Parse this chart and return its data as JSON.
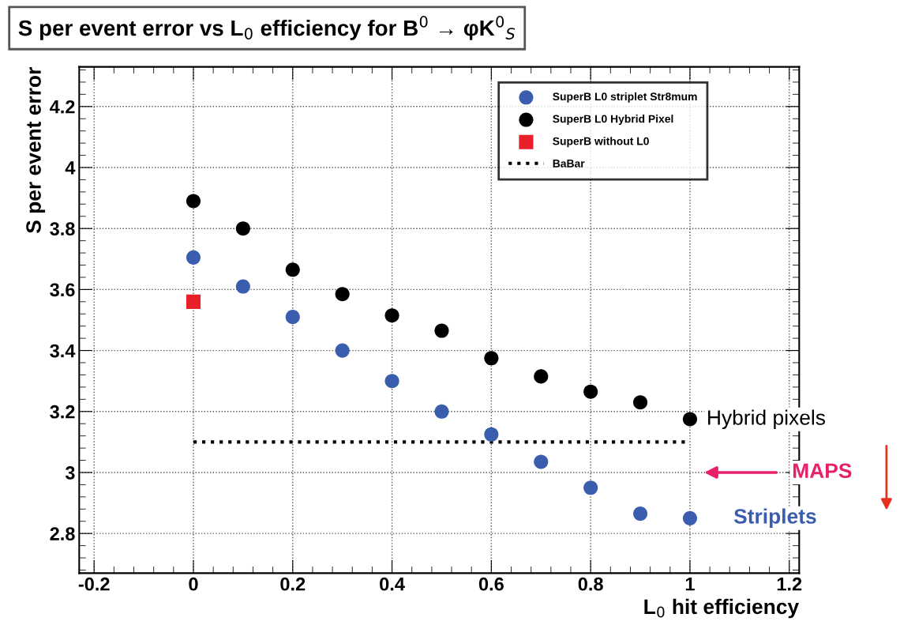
{
  "chart_data": {
    "type": "scatter",
    "title": "S per event error vs L$_{0}$ efficiency for B$^{0}$ → φK$^{0}$$_{S}$",
    "xlabel": "L$_{0}$ hit efficiency",
    "ylabel": "S per event error",
    "xlim": [
      -0.23,
      1.22
    ],
    "ylim": [
      2.67,
      4.33
    ],
    "xticks": [
      {
        "value": -0.2,
        "label": "-0.2"
      },
      0,
      0.2,
      0.4,
      0.6,
      0.8,
      1,
      1.2
    ],
    "yticks": [
      2.8,
      3,
      3.2,
      3.4,
      3.6,
      3.8,
      4,
      4.2
    ],
    "grid": true,
    "legend": "top right",
    "series": [
      {
        "name": "SuperB L0 striplet Str8mum",
        "color": "#3a5dae",
        "marker": "circle",
        "x": [
          0,
          0.1,
          0.2,
          0.3,
          0.4,
          0.5,
          0.6,
          0.7,
          0.8,
          0.9,
          1
        ],
        "values": [
          3.705,
          3.61,
          3.51,
          3.4,
          3.3,
          3.2,
          3.125,
          3.035,
          2.95,
          2.865,
          2.85
        ]
      },
      {
        "name": "SuperB L0 Hybrid Pixel",
        "color": "#000000",
        "marker": "circle",
        "x": [
          0,
          0.1,
          0.2,
          0.3,
          0.4,
          0.5,
          0.6,
          0.7,
          0.8,
          0.9,
          1
        ],
        "values": [
          3.89,
          3.8,
          3.665,
          3.585,
          3.515,
          3.465,
          3.375,
          3.315,
          3.265,
          3.23,
          3.175
        ]
      },
      {
        "name": "SuperB without L0",
        "color": "#e8202a",
        "marker": "square",
        "x": [
          0
        ],
        "values": [
          3.56
        ]
      },
      {
        "name": "BaBar",
        "type": "line",
        "color": "#000000",
        "line_style": "dotted",
        "marker": "none",
        "x": [
          0,
          1
        ],
        "values": [
          3.1,
          3.1
        ]
      }
    ],
    "annotations": [
      "Hybrid pixels",
      "MAPS",
      "Striplets"
    ]
  }
}
